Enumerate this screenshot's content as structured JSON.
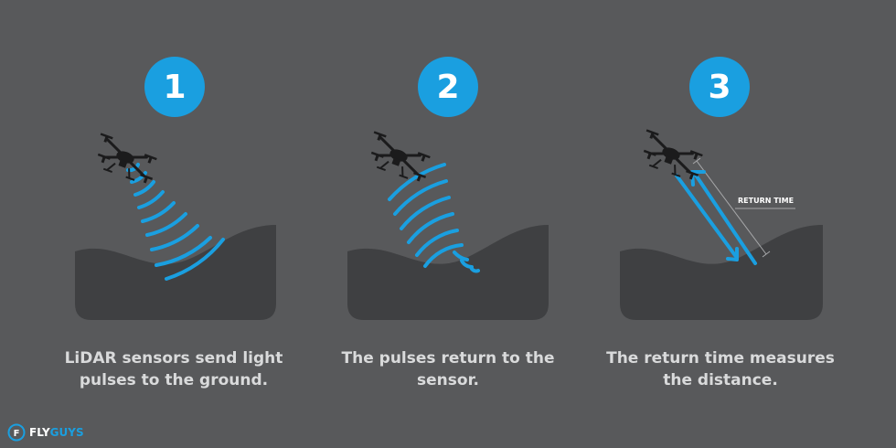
{
  "colors": {
    "background": "#58595b",
    "ground": "#3f4042",
    "accent": "#1a9fe0",
    "caption": "#d9dadb",
    "drone": "#1b1b1c"
  },
  "steps": [
    {
      "number": "1",
      "caption_line1": "LiDAR sensors send light",
      "caption_line2": "pulses to the ground.",
      "icon": "drone-icon"
    },
    {
      "number": "2",
      "caption_line1": "The pulses return to the",
      "caption_line2": "sensor.",
      "icon": "drone-icon"
    },
    {
      "number": "3",
      "caption_line1": "The return time measures",
      "caption_line2": "the distance.",
      "icon": "drone-icon",
      "annotation": "RETURN TIME"
    }
  ],
  "logo": {
    "mark": "F",
    "word_white": "FLY",
    "word_blue": "GUYS"
  }
}
